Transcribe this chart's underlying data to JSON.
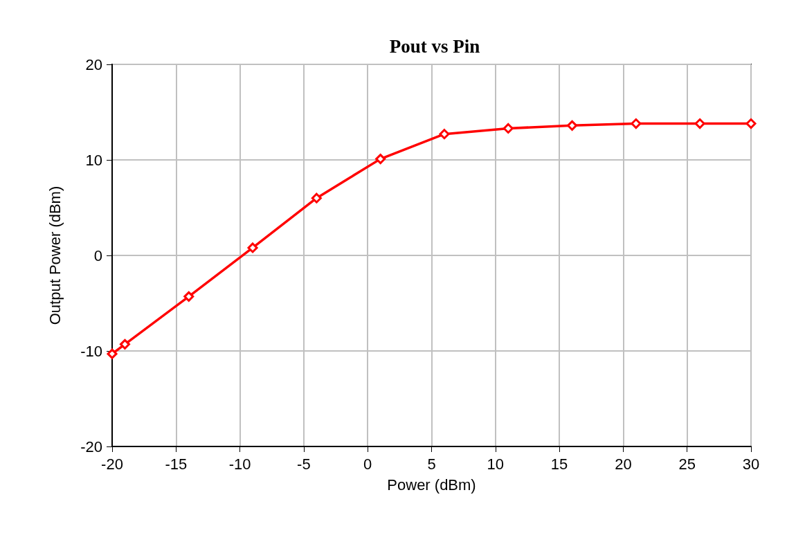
{
  "chart_data": {
    "type": "line",
    "title": "Pout vs Pin",
    "xlabel": "Power (dBm)",
    "ylabel": "Output Power (dBm)",
    "series": [
      {
        "color": "#ff0000",
        "x": [
          -20,
          -19,
          -14,
          -9,
          -4,
          1,
          6,
          11,
          16,
          21,
          26,
          30
        ],
        "values": [
          -10.3,
          -9.3,
          -4.3,
          0.8,
          6.0,
          10.1,
          12.7,
          13.3,
          13.6,
          13.8,
          13.8,
          13.8
        ]
      }
    ],
    "xlim": [
      -20,
      30
    ],
    "xticks": [
      -20,
      -15,
      -10,
      -5,
      0,
      5,
      10,
      15,
      20,
      25,
      30
    ],
    "ylim": [
      -20,
      20
    ],
    "yticks": [
      -20,
      -10,
      0,
      10,
      20
    ],
    "grid": true,
    "marker": "diamond",
    "line_style": "solid"
  }
}
